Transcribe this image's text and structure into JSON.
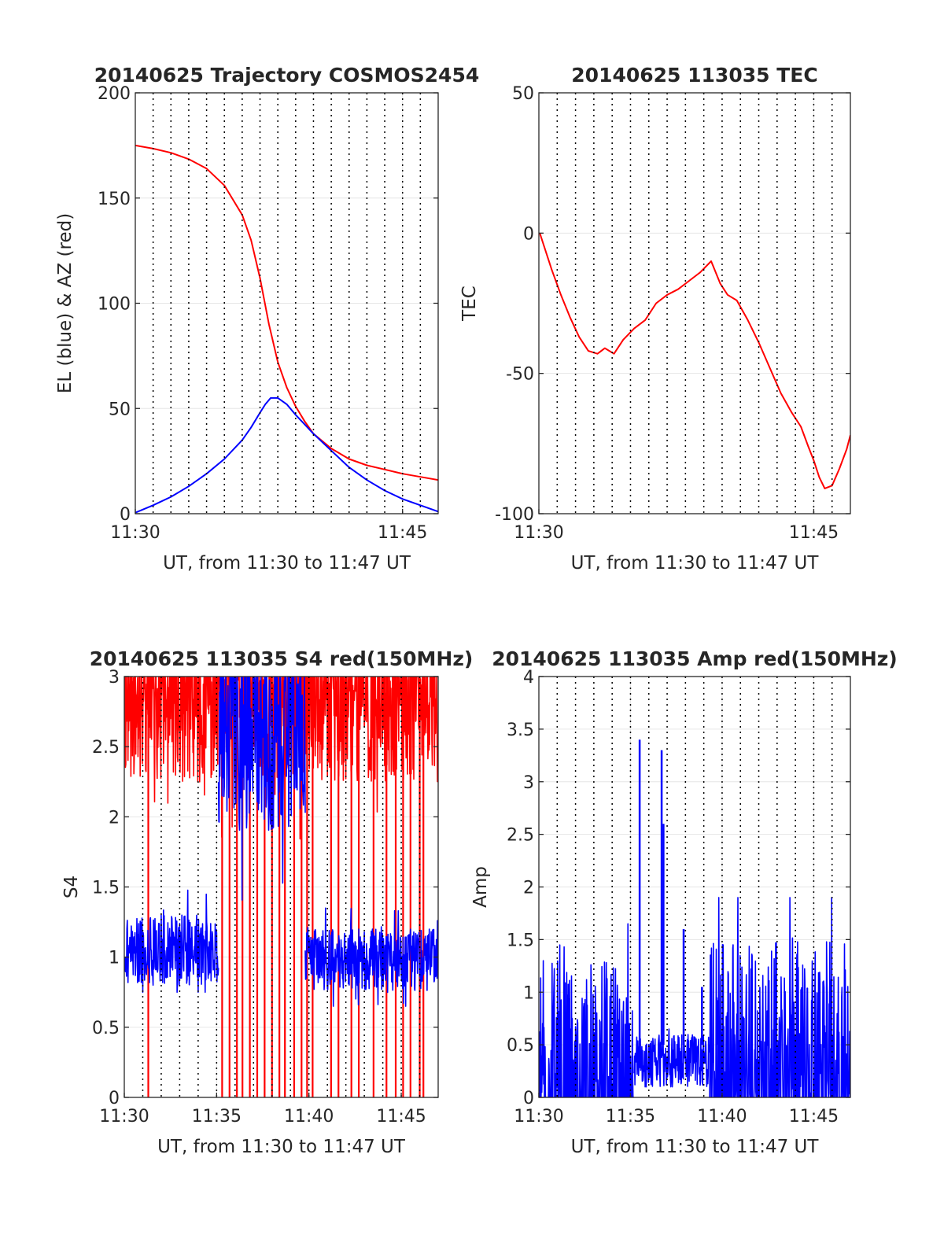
{
  "colors": {
    "azimuth": "#ff0000",
    "elevation": "#0000ff",
    "tec": "#ff0000",
    "s4_red": "#ff0000",
    "s4_blue": "#0000ff",
    "amp": "#0000ff",
    "grid": "#e6e6e6",
    "axis": "#262626"
  },
  "chart_data": [
    {
      "id": "trajectory",
      "type": "line",
      "title": "20140625 Trajectory COSMOS2454",
      "xlabel": "UT, from 11:30 to 11:47 UT",
      "ylabel": "EL (blue) & AZ (red)",
      "xlim": [
        0,
        17
      ],
      "ylim": [
        0,
        200
      ],
      "x_ticks": [
        0,
        15
      ],
      "x_tick_labels": [
        "11:30",
        "11:45"
      ],
      "y_ticks": [
        0,
        50,
        100,
        150,
        200
      ],
      "y_tick_labels": [
        "0",
        "50",
        "100",
        "150",
        "200"
      ],
      "vertical_dotted_every_min": 1,
      "series": [
        {
          "color": "#ff0000",
          "x": [
            0,
            1,
            2,
            3,
            4,
            5,
            6,
            6.5,
            7,
            7.5,
            8,
            8.5,
            9,
            9.5,
            10,
            11,
            12,
            13,
            14,
            15,
            16,
            17
          ],
          "y": [
            175,
            173.5,
            171.5,
            168.5,
            164,
            156,
            142,
            130,
            112,
            90,
            72,
            60,
            51,
            44,
            38,
            31,
            26,
            23,
            21,
            19,
            17.5,
            16
          ]
        },
        {
          "color": "#0000ff",
          "x": [
            0,
            1,
            2,
            3,
            4,
            5,
            6,
            6.5,
            7,
            7.3,
            7.6,
            8,
            8.5,
            9,
            10,
            11,
            12,
            13,
            14,
            15,
            16,
            17
          ],
          "y": [
            0.5,
            4,
            8,
            13,
            19,
            26,
            35,
            41,
            48,
            52,
            55,
            55,
            52,
            47,
            38,
            30,
            22,
            16,
            11,
            7,
            4,
            1
          ]
        }
      ]
    },
    {
      "id": "tec",
      "type": "line",
      "title": "20140625 113035 TEC",
      "xlabel": "UT, from 11:30 to 11:47 UT",
      "ylabel": "TEC",
      "xlim": [
        0,
        17
      ],
      "ylim": [
        -100,
        50
      ],
      "x_ticks": [
        0,
        15
      ],
      "x_tick_labels": [
        "11:30",
        "11:45"
      ],
      "y_ticks": [
        -100,
        -50,
        0,
        50
      ],
      "y_tick_labels": [
        "-100",
        "-50",
        "0",
        "50"
      ],
      "vertical_dotted_every_min": 1,
      "series": [
        {
          "color": "#ff0000",
          "x": [
            0.05,
            0.3,
            0.7,
            1.2,
            1.7,
            2.2,
            2.7,
            3.2,
            3.6,
            4.1,
            4.6,
            5.2,
            5.8,
            6.4,
            7,
            7.6,
            8.2,
            8.8,
            9.4,
            9.9,
            10.3,
            10.8,
            11.4,
            12,
            12.6,
            13.2,
            13.8,
            14.3,
            14.7,
            15,
            15.3,
            15.6,
            16,
            16.4,
            16.8,
            17
          ],
          "y": [
            0,
            -5,
            -13,
            -22,
            -30,
            -37,
            -42,
            -43,
            -41,
            -43,
            -38,
            -34,
            -31,
            -25,
            -22,
            -20,
            -17,
            -14,
            -10,
            -18,
            -22,
            -24,
            -31,
            -39,
            -48,
            -57,
            -64,
            -69,
            -76,
            -81,
            -87,
            -91,
            -90,
            -84,
            -77,
            -72
          ]
        }
      ]
    },
    {
      "id": "s4",
      "type": "line",
      "title": "20140625 113035 S4 red(150MHz)",
      "xlabel": "UT, from 11:30 to 11:47 UT",
      "ylabel": "S4",
      "xlim": [
        0,
        17
      ],
      "ylim": [
        0,
        3
      ],
      "x_ticks": [
        0,
        5,
        10,
        15
      ],
      "x_tick_labels": [
        "11:30",
        "11:35",
        "11:40",
        "11:45"
      ],
      "y_ticks": [
        0,
        0.5,
        1,
        1.5,
        2,
        2.5,
        3
      ],
      "y_tick_labels": [
        "0",
        "0.5",
        "1",
        "1.5",
        "2",
        "2.5",
        "3"
      ],
      "vertical_dotted_every_min": 1,
      "series": [
        {
          "color": "#ff0000",
          "noise": {
            "x_start": 0,
            "x_end": 17,
            "base": 2.85,
            "amplitude": 0.6,
            "min": 1.5,
            "max": 3,
            "seed": 11
          },
          "drops_x": [
            1.3,
            5.3,
            5.7,
            6.1,
            6.4,
            6.8,
            7.2,
            7.6,
            8.0,
            8.4,
            8.7,
            9.2,
            9.6,
            9.9,
            10.2,
            11.2,
            11.6,
            12.3,
            12.7,
            13.5,
            14.2,
            14.7,
            15.1,
            15.5,
            16.0,
            16.2
          ]
        },
        {
          "color": "#0000ff",
          "noise": {
            "x_start": 0,
            "x_end": 5.1,
            "base": 1.05,
            "amplitude": 0.25,
            "min": 0.75,
            "max": 1.5,
            "seed": 21
          }
        },
        {
          "color": "#0000ff",
          "noise": {
            "x_start": 5.1,
            "x_end": 9.8,
            "base": 2.6,
            "amplitude": 0.7,
            "min": 0.5,
            "max": 3,
            "seed": 31
          }
        },
        {
          "color": "#0000ff",
          "noise": {
            "x_start": 9.8,
            "x_end": 17,
            "base": 0.98,
            "amplitude": 0.22,
            "min": 0.65,
            "max": 1.35,
            "seed": 41
          }
        }
      ]
    },
    {
      "id": "amp",
      "type": "line",
      "title": "20140625 113035 Amp red(150MHz)",
      "xlabel": "UT, from 11:30 to 11:47 UT",
      "ylabel": "Amp",
      "xlim": [
        0,
        17
      ],
      "ylim": [
        0,
        4
      ],
      "x_ticks": [
        0,
        5,
        10,
        15
      ],
      "x_tick_labels": [
        "11:30",
        "11:35",
        "11:40",
        "11:45"
      ],
      "y_ticks": [
        0,
        0.5,
        1,
        1.5,
        2,
        2.5,
        3,
        3.5,
        4
      ],
      "y_tick_labels": [
        "0",
        "0.5",
        "1",
        "1.5",
        "2",
        "2.5",
        "3",
        "3.5",
        "4"
      ],
      "vertical_dotted_every_min": 1,
      "series": [
        {
          "color": "#0000ff",
          "noise": {
            "x_start": 0,
            "x_end": 5.2,
            "base": 0,
            "amplitude": 1.3,
            "min": 0,
            "max": 1.65,
            "seed": 51
          }
        },
        {
          "color": "#0000ff",
          "noise": {
            "x_start": 5.2,
            "x_end": 9.3,
            "base": 0.35,
            "amplitude": 0.25,
            "min": 0.1,
            "max": 0.65,
            "seed": 61
          }
        },
        {
          "color": "#0000ff",
          "noise": {
            "x_start": 9.3,
            "x_end": 17,
            "base": 0.1,
            "amplitude": 1.4,
            "min": 0,
            "max": 1.9,
            "seed": 71
          }
        }
      ],
      "spikes": [
        {
          "x": 5.5,
          "y": 3.4
        },
        {
          "x": 6.7,
          "y": 3.3
        },
        {
          "x": 6.8,
          "y": 2.6
        },
        {
          "x": 7.9,
          "y": 1.6
        },
        {
          "x": 8.9,
          "y": 1.05
        },
        {
          "x": 9.7,
          "y": 0.95
        }
      ]
    }
  ]
}
